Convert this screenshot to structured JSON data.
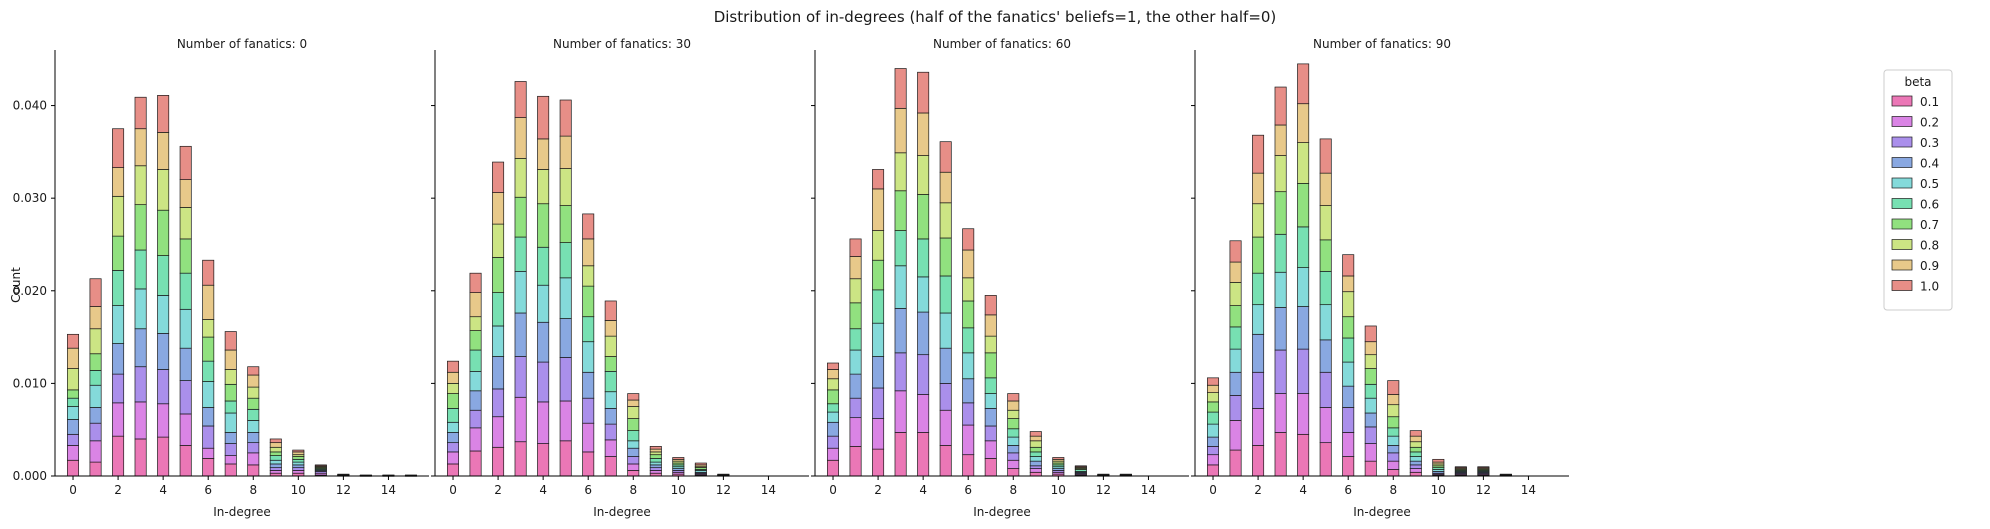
{
  "suptitle": "Distribution of in-degrees (half of the fanatics' beliefs=1, the other half=0)",
  "ylabel": "Count",
  "xlabel": "In-degree",
  "legend": {
    "title": "beta",
    "placement": "top-right"
  },
  "betas": [
    "0.1",
    "0.2",
    "0.3",
    "0.4",
    "0.5",
    "0.6",
    "0.7",
    "0.8",
    "0.9",
    "1.0"
  ],
  "colors": [
    "#e75fa9",
    "#d36fe0",
    "#9b7be8",
    "#7499dc",
    "#6fd3d3",
    "#5fdba4",
    "#7edc69",
    "#c3e06e",
    "#e4bf75",
    "#e37a72"
  ],
  "chart_data": {
    "type": "bar",
    "stacked": true,
    "xlim": [
      -0.8,
      15.8
    ],
    "ylim": [
      0,
      0.046
    ],
    "xticks": [
      0,
      2,
      4,
      6,
      8,
      10,
      12,
      14
    ],
    "yticks": [
      0.0,
      0.01,
      0.02,
      0.03,
      0.04
    ],
    "ytick_labels": [
      "0.000",
      "0.010",
      "0.020",
      "0.030",
      "0.040"
    ],
    "panels": [
      {
        "title": "Number of fanatics: 0",
        "x": [
          0,
          1,
          2,
          3,
          4,
          5,
          6,
          7,
          8,
          9,
          10,
          11,
          12,
          13,
          14,
          15
        ],
        "series": [
          {
            "name": "0.1",
            "values": [
              0.0017,
              0.0015,
              0.0043,
              0.004,
              0.0042,
              0.0033,
              0.0019,
              0.0013,
              0.0012,
              0.0003,
              0.0003,
              0.0001,
              2e-05,
              1e-05,
              1e-05,
              1e-05
            ]
          },
          {
            "name": "0.2",
            "values": [
              0.0016,
              0.0023,
              0.0036,
              0.004,
              0.0036,
              0.0034,
              0.0011,
              0.0009,
              0.0013,
              0.0003,
              0.0003,
              0.0002,
              2e-05,
              1e-05,
              1e-05,
              1e-05
            ]
          },
          {
            "name": "0.3",
            "values": [
              0.0012,
              0.0019,
              0.0031,
              0.0038,
              0.0037,
              0.0036,
              0.0024,
              0.0013,
              0.0011,
              0.0003,
              0.0003,
              0.0002,
              2e-05,
              1e-05,
              1e-05,
              1e-05
            ]
          },
          {
            "name": "0.4",
            "values": [
              0.0016,
              0.0017,
              0.0033,
              0.0041,
              0.0039,
              0.0035,
              0.002,
              0.0012,
              0.0011,
              0.0004,
              0.0003,
              0.0001,
              2e-05,
              1e-05,
              1e-05,
              1e-05
            ]
          },
          {
            "name": "0.5",
            "values": [
              0.0014,
              0.0024,
              0.0041,
              0.0043,
              0.0041,
              0.0042,
              0.0028,
              0.0021,
              0.0013,
              0.0004,
              0.0003,
              0.0001,
              2e-05,
              1e-05,
              1e-05,
              1e-05
            ]
          },
          {
            "name": "0.6",
            "values": [
              0.0009,
              0.0016,
              0.0038,
              0.0042,
              0.0043,
              0.0039,
              0.0022,
              0.0013,
              0.0012,
              0.0005,
              0.0003,
              0.0001,
              2e-05,
              1e-05,
              1e-05,
              1e-05
            ]
          },
          {
            "name": "0.7",
            "values": [
              0.0009,
              0.0018,
              0.0037,
              0.0049,
              0.0049,
              0.0037,
              0.0026,
              0.0018,
              0.0012,
              0.0004,
              0.0003,
              0.0001,
              2e-05,
              1e-05,
              1e-05,
              1e-05
            ]
          },
          {
            "name": "0.8",
            "values": [
              0.0023,
              0.0027,
              0.0043,
              0.0042,
              0.0044,
              0.0034,
              0.0019,
              0.0016,
              0.0012,
              0.0005,
              0.0002,
              0.0001,
              2e-05,
              1e-05,
              1e-05,
              1e-05
            ]
          },
          {
            "name": "0.9",
            "values": [
              0.0022,
              0.0024,
              0.0031,
              0.004,
              0.004,
              0.003,
              0.0037,
              0.0021,
              0.0013,
              0.0005,
              0.0003,
              0.0001,
              2e-05,
              1e-05,
              1e-05,
              1e-05
            ]
          },
          {
            "name": "1.0",
            "values": [
              0.0015,
              0.003,
              0.0042,
              0.0034,
              0.004,
              0.0036,
              0.0027,
              0.002,
              0.0009,
              0.0004,
              0.0002,
              0.0001,
              2e-05,
              1e-05,
              1e-05,
              1e-05
            ]
          }
        ]
      },
      {
        "title": "Number of fanatics: 30",
        "x": [
          0,
          1,
          2,
          3,
          4,
          5,
          6,
          7,
          8,
          9,
          10,
          11,
          12,
          13,
          14,
          15
        ],
        "series": [
          {
            "name": "0.1",
            "values": [
              0.0013,
              0.0027,
              0.0031,
              0.0037,
              0.0035,
              0.0038,
              0.0026,
              0.0021,
              0.0006,
              0.0003,
              0.0002,
              0.0001,
              2e-05,
              0,
              0,
              0
            ]
          },
          {
            "name": "0.2",
            "values": [
              0.0013,
              0.0025,
              0.0033,
              0.0048,
              0.0045,
              0.0043,
              0.0031,
              0.0018,
              0.0007,
              0.0003,
              0.0002,
              0.0001,
              2e-05,
              0,
              0,
              0
            ]
          },
          {
            "name": "0.3",
            "values": [
              0.001,
              0.0019,
              0.003,
              0.0044,
              0.0043,
              0.0047,
              0.0027,
              0.0017,
              0.0008,
              0.0003,
              0.0002,
              0.0001,
              2e-05,
              0,
              0,
              0
            ]
          },
          {
            "name": "0.4",
            "values": [
              0.0011,
              0.0021,
              0.0035,
              0.0047,
              0.0043,
              0.0042,
              0.0028,
              0.0017,
              0.0009,
              0.0003,
              0.0002,
              0.0001,
              2e-05,
              0,
              0,
              0
            ]
          },
          {
            "name": "0.5",
            "values": [
              0.0011,
              0.0021,
              0.0033,
              0.0045,
              0.004,
              0.0044,
              0.0033,
              0.0018,
              0.0008,
              0.0003,
              0.0002,
              0.0002,
              2e-05,
              0,
              0,
              0
            ]
          },
          {
            "name": "0.6",
            "values": [
              0.0015,
              0.0023,
              0.0036,
              0.0037,
              0.0041,
              0.0038,
              0.0027,
              0.0022,
              0.0011,
              0.0004,
              0.0002,
              0.0001,
              2e-05,
              0,
              0,
              0
            ]
          },
          {
            "name": "0.7",
            "values": [
              0.0016,
              0.0021,
              0.0038,
              0.0043,
              0.0047,
              0.004,
              0.0033,
              0.0016,
              0.0013,
              0.0004,
              0.0002,
              0.0002,
              2e-05,
              0,
              0,
              0
            ]
          },
          {
            "name": "0.8",
            "values": [
              0.0011,
              0.0015,
              0.0036,
              0.0042,
              0.0037,
              0.004,
              0.0022,
              0.0022,
              0.0013,
              0.0003,
              0.0002,
              0.0001,
              2e-05,
              0,
              0,
              0
            ]
          },
          {
            "name": "0.9",
            "values": [
              0.0012,
              0.0026,
              0.0034,
              0.0044,
              0.0033,
              0.0035,
              0.0029,
              0.0017,
              0.0007,
              0.0003,
              0.0002,
              0.0002,
              2e-05,
              0,
              0,
              0
            ]
          },
          {
            "name": "1.0",
            "values": [
              0.0012,
              0.0021,
              0.0033,
              0.0039,
              0.0046,
              0.0039,
              0.0027,
              0.0021,
              0.0007,
              0.0003,
              0.0002,
              0.0002,
              2e-05,
              0,
              0,
              0
            ]
          }
        ]
      },
      {
        "title": "Number of fanatics: 60",
        "x": [
          0,
          1,
          2,
          3,
          4,
          5,
          6,
          7,
          8,
          9,
          10,
          11,
          12,
          13,
          14,
          15
        ],
        "series": [
          {
            "name": "0.1",
            "values": [
              0.0017,
              0.0032,
              0.0029,
              0.0047,
              0.0047,
              0.0033,
              0.0023,
              0.0019,
              0.0008,
              0.0004,
              0.0002,
              0.0001,
              2e-05,
              2e-05,
              0,
              0
            ]
          },
          {
            "name": "0.2",
            "values": [
              0.0013,
              0.0031,
              0.0033,
              0.0045,
              0.0041,
              0.0038,
              0.0032,
              0.0019,
              0.0009,
              0.0004,
              0.0002,
              0.0001,
              2e-05,
              2e-05,
              0,
              0
            ]
          },
          {
            "name": "0.3",
            "values": [
              0.0013,
              0.0021,
              0.0033,
              0.0041,
              0.0043,
              0.0029,
              0.0024,
              0.0016,
              0.0008,
              0.0003,
              0.0002,
              0.0001,
              2e-05,
              2e-05,
              0,
              0
            ]
          },
          {
            "name": "0.4",
            "values": [
              0.0015,
              0.0026,
              0.0034,
              0.0048,
              0.0046,
              0.0038,
              0.0026,
              0.0019,
              0.0008,
              0.0005,
              0.0002,
              0.0001,
              2e-05,
              2e-05,
              0,
              0
            ]
          },
          {
            "name": "0.5",
            "values": [
              0.0011,
              0.0026,
              0.0036,
              0.0046,
              0.0038,
              0.0038,
              0.0028,
              0.0016,
              0.0009,
              0.0005,
              0.0002,
              0.0001,
              2e-05,
              2e-05,
              0,
              0
            ]
          },
          {
            "name": "0.6",
            "values": [
              0.0009,
              0.0023,
              0.0036,
              0.0038,
              0.0041,
              0.004,
              0.0027,
              0.0017,
              0.0009,
              0.0005,
              0.0002,
              0.0002,
              2e-05,
              2e-05,
              0,
              0
            ]
          },
          {
            "name": "0.7",
            "values": [
              0.0015,
              0.0028,
              0.0032,
              0.0043,
              0.0048,
              0.0041,
              0.0029,
              0.0027,
              0.0011,
              0.0005,
              0.0002,
              0.0001,
              2e-05,
              2e-05,
              0,
              0
            ]
          },
          {
            "name": "0.8",
            "values": [
              0.0012,
              0.0026,
              0.0032,
              0.0041,
              0.0042,
              0.0038,
              0.0025,
              0.0018,
              0.0009,
              0.0007,
              0.0002,
              0.0001,
              2e-05,
              2e-05,
              0,
              0
            ]
          },
          {
            "name": "0.9",
            "values": [
              0.001,
              0.0024,
              0.0045,
              0.0048,
              0.0046,
              0.0033,
              0.003,
              0.0023,
              0.001,
              0.0005,
              0.0002,
              0.0001,
              2e-05,
              2e-05,
              0,
              0
            ]
          },
          {
            "name": "1.0",
            "values": [
              0.0007,
              0.0019,
              0.0021,
              0.0043,
              0.0044,
              0.0033,
              0.0023,
              0.0021,
              0.0008,
              0.0005,
              0.0002,
              0.0001,
              2e-05,
              2e-05,
              0,
              0
            ]
          }
        ]
      },
      {
        "title": "Number of fanatics: 90",
        "x": [
          0,
          1,
          2,
          3,
          4,
          5,
          6,
          7,
          8,
          9,
          10,
          11,
          12,
          13,
          14,
          15
        ],
        "series": [
          {
            "name": "0.1",
            "values": [
              0.0012,
              0.0028,
              0.0033,
              0.0047,
              0.0045,
              0.0036,
              0.0021,
              0.0016,
              0.0007,
              0.0004,
              0.0001,
              0.0001,
              0.0001,
              2e-05,
              0,
              0
            ]
          },
          {
            "name": "0.2",
            "values": [
              0.0011,
              0.0032,
              0.004,
              0.0042,
              0.0044,
              0.0038,
              0.0026,
              0.0019,
              0.0009,
              0.0004,
              0.0001,
              0.0001,
              0.0001,
              2e-05,
              0,
              0
            ]
          },
          {
            "name": "0.3",
            "values": [
              0.0009,
              0.0027,
              0.0039,
              0.0047,
              0.0048,
              0.0038,
              0.0027,
              0.0018,
              0.0009,
              0.0004,
              0.0001,
              0.0001,
              0.0001,
              2e-05,
              0,
              0
            ]
          },
          {
            "name": "0.4",
            "values": [
              0.001,
              0.0025,
              0.0041,
              0.0046,
              0.0046,
              0.0035,
              0.0023,
              0.0015,
              0.0008,
              0.0004,
              0.0002,
              0.0001,
              0.0001,
              2e-05,
              0,
              0
            ]
          },
          {
            "name": "0.5",
            "values": [
              0.0014,
              0.0025,
              0.0032,
              0.0038,
              0.0042,
              0.0038,
              0.0026,
              0.0016,
              0.001,
              0.0005,
              0.0002,
              0.0001,
              0.0001,
              2e-05,
              0,
              0
            ]
          },
          {
            "name": "0.6",
            "values": [
              0.0013,
              0.0024,
              0.0034,
              0.0041,
              0.0044,
              0.0036,
              0.0026,
              0.0015,
              0.0009,
              0.0005,
              0.0002,
              0.0001,
              0.0001,
              2e-05,
              0,
              0
            ]
          },
          {
            "name": "0.7",
            "values": [
              0.0011,
              0.0023,
              0.0039,
              0.0046,
              0.0047,
              0.0034,
              0.0023,
              0.0017,
              0.0012,
              0.0005,
              0.0002,
              0.0001,
              0.0001,
              2e-05,
              0,
              0
            ]
          },
          {
            "name": "0.8",
            "values": [
              0.001,
              0.0025,
              0.0036,
              0.0039,
              0.0044,
              0.0037,
              0.0027,
              0.0015,
              0.0013,
              0.0006,
              0.0002,
              0.0001,
              0.0001,
              2e-05,
              0,
              0
            ]
          },
          {
            "name": "0.9",
            "values": [
              0.0008,
              0.0022,
              0.0033,
              0.0033,
              0.0042,
              0.0035,
              0.0017,
              0.0014,
              0.0011,
              0.0006,
              0.0002,
              0.0001,
              0.0001,
              2e-05,
              0,
              0
            ]
          },
          {
            "name": "1.0",
            "values": [
              0.0008,
              0.0023,
              0.0041,
              0.0041,
              0.0043,
              0.0037,
              0.0023,
              0.0017,
              0.0015,
              0.0006,
              0.0003,
              0.0001,
              0.0001,
              2e-05,
              0,
              0
            ]
          }
        ]
      }
    ]
  }
}
